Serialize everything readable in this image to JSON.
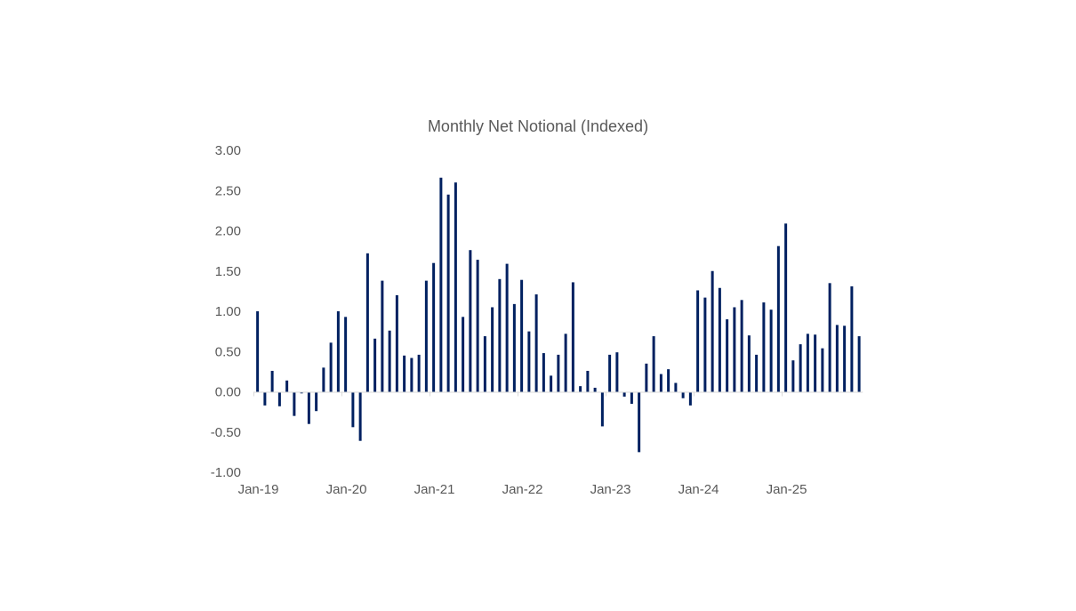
{
  "chart_data": {
    "type": "bar",
    "title": "Monthly Net Notional (Indexed)",
    "xlabel": "",
    "ylabel": "",
    "ylim": [
      -1.0,
      3.0
    ],
    "yticks": [
      "3.00",
      "2.50",
      "2.00",
      "1.50",
      "1.00",
      "0.50",
      "0.00",
      "-0.50",
      "-1.00"
    ],
    "ytick_values": [
      3.0,
      2.5,
      2.0,
      1.5,
      1.0,
      0.5,
      0.0,
      -0.5,
      -1.0
    ],
    "xtick_labels": [
      "Jan-19",
      "Jan-20",
      "Jan-21",
      "Jan-22",
      "Jan-23",
      "Jan-24",
      "Jan-25"
    ],
    "grid": false,
    "legend": "none",
    "bar_color": "#002060",
    "axis_color": "#D9D9D9",
    "start_month": "Jan-19",
    "categories": [
      "Jan-19",
      "Feb-19",
      "Mar-19",
      "Apr-19",
      "May-19",
      "Jun-19",
      "Jul-19",
      "Aug-19",
      "Sep-19",
      "Oct-19",
      "Nov-19",
      "Dec-19",
      "Jan-20",
      "Feb-20",
      "Mar-20",
      "Apr-20",
      "May-20",
      "Jun-20",
      "Jul-20",
      "Aug-20",
      "Sep-20",
      "Oct-20",
      "Nov-20",
      "Dec-20",
      "Jan-21",
      "Feb-21",
      "Mar-21",
      "Apr-21",
      "May-21",
      "Jun-21",
      "Jul-21",
      "Aug-21",
      "Sep-21",
      "Oct-21",
      "Nov-21",
      "Dec-21",
      "Jan-22",
      "Feb-22",
      "Mar-22",
      "Apr-22",
      "May-22",
      "Jun-22",
      "Jul-22",
      "Aug-22",
      "Sep-22",
      "Oct-22",
      "Nov-22",
      "Dec-22",
      "Jan-23",
      "Feb-23",
      "Mar-23",
      "Apr-23",
      "May-23",
      "Jun-23",
      "Jul-23",
      "Aug-23",
      "Sep-23",
      "Oct-23",
      "Nov-23",
      "Dec-23",
      "Jan-24",
      "Feb-24",
      "Mar-24",
      "Apr-24",
      "May-24",
      "Jun-24",
      "Jul-24",
      "Aug-24",
      "Sep-24",
      "Oct-24",
      "Nov-24",
      "Dec-24",
      "Jan-25",
      "Feb-25",
      "Mar-25",
      "Apr-25",
      "May-25",
      "Jun-25",
      "Jul-25",
      "Aug-25",
      "Sep-25",
      "Oct-25",
      "Nov-25"
    ],
    "values": [
      1.0,
      -0.17,
      0.26,
      -0.18,
      0.14,
      -0.3,
      -0.02,
      -0.4,
      -0.24,
      0.3,
      0.61,
      1.0,
      0.93,
      -0.44,
      -0.61,
      1.72,
      0.66,
      1.38,
      0.76,
      1.2,
      0.45,
      0.42,
      0.46,
      1.38,
      1.6,
      2.66,
      2.45,
      2.6,
      0.93,
      1.76,
      1.64,
      0.69,
      1.05,
      1.4,
      1.59,
      1.09,
      1.39,
      0.75,
      1.21,
      0.48,
      0.2,
      0.46,
      0.72,
      1.36,
      0.07,
      0.26,
      0.05,
      -0.43,
      0.46,
      0.49,
      -0.06,
      -0.15,
      -0.75,
      0.35,
      0.69,
      0.22,
      0.28,
      0.11,
      -0.08,
      -0.17,
      1.26,
      1.17,
      1.5,
      1.29,
      0.9,
      1.05,
      1.14,
      0.7,
      0.46,
      1.11,
      1.02,
      1.81,
      2.09,
      0.39,
      0.59,
      0.72,
      0.71,
      0.54,
      1.35,
      0.83,
      0.82,
      1.31,
      0.69
    ]
  }
}
